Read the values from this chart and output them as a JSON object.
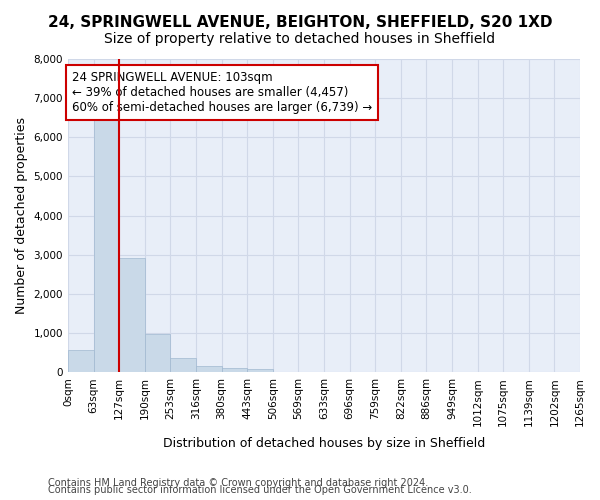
{
  "title1": "24, SPRINGWELL AVENUE, BEIGHTON, SHEFFIELD, S20 1XD",
  "title2": "Size of property relative to detached houses in Sheffield",
  "xlabel": "Distribution of detached houses by size in Sheffield",
  "ylabel": "Number of detached properties",
  "bar_values": [
    570,
    6430,
    2920,
    990,
    360,
    165,
    105,
    90,
    0,
    0,
    0,
    0,
    0,
    0,
    0,
    0,
    0,
    0,
    0,
    0
  ],
  "bar_labels": [
    "0sqm",
    "63sqm",
    "127sqm",
    "190sqm",
    "253sqm",
    "316sqm",
    "380sqm",
    "443sqm",
    "506sqm",
    "569sqm",
    "633sqm",
    "696sqm",
    "759sqm",
    "822sqm",
    "886sqm",
    "949sqm",
    "1012sqm",
    "1075sqm",
    "1139sqm",
    "1202sqm",
    "1265sqm"
  ],
  "bar_color": "#c9d9e8",
  "bar_edge_color": "#a0b8d0",
  "vline_color": "#cc0000",
  "annotation_text": "24 SPRINGWELL AVENUE: 103sqm\n← 39% of detached houses are smaller (4,457)\n60% of semi-detached houses are larger (6,739) →",
  "annotation_box_color": "#ffffff",
  "annotation_box_edge": "#cc0000",
  "ylim": [
    0,
    8000
  ],
  "yticks": [
    0,
    1000,
    2000,
    3000,
    4000,
    5000,
    6000,
    7000,
    8000
  ],
  "grid_color": "#d0d8e8",
  "bg_color": "#e8eef8",
  "footer1": "Contains HM Land Registry data © Crown copyright and database right 2024.",
  "footer2": "Contains public sector information licensed under the Open Government Licence v3.0.",
  "title1_fontsize": 11,
  "title2_fontsize": 10,
  "xlabel_fontsize": 9,
  "ylabel_fontsize": 9,
  "tick_fontsize": 7.5,
  "annotation_fontsize": 8.5,
  "footer_fontsize": 7
}
